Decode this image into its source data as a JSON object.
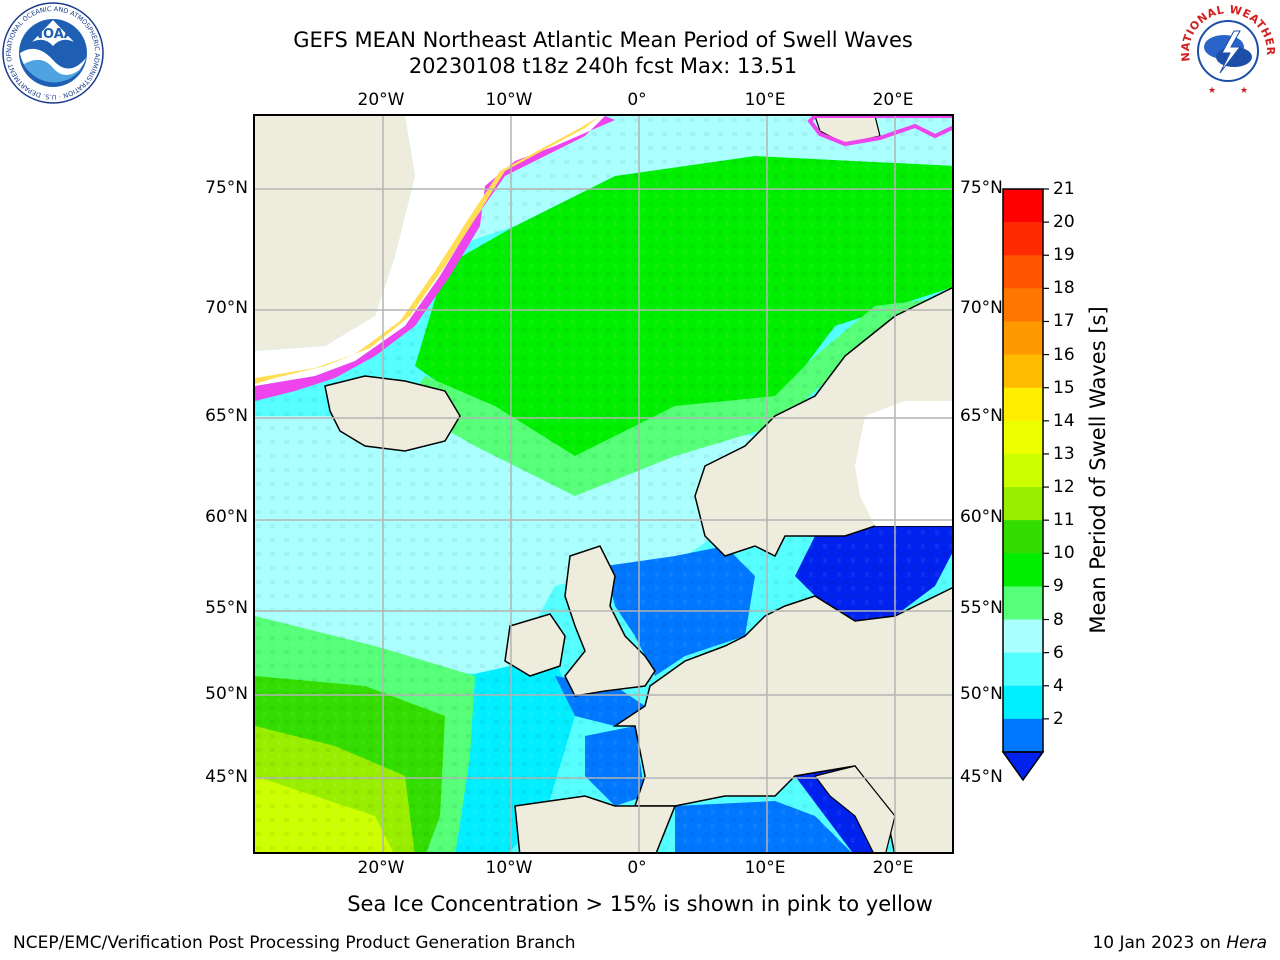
{
  "header": {
    "title_line1": "GEFS MEAN Northeast Atlantic Mean Period of Swell Waves",
    "title_line2": "20230108 t18z 240h fcst   Max: 13.51"
  },
  "logos": {
    "noaa_text": "NOAA",
    "noaa_ring_text": "NATIONAL OCEANIC AND ATMOSPHERIC ADMINISTRATION · U.S. DEPARTMENT OF COMMERCE",
    "nws_ring_text": "NATIONAL WEATHER SERVICE"
  },
  "map": {
    "lon_labels": [
      "20°W",
      "10°W",
      "0°",
      "10°E",
      "20°E"
    ],
    "lat_labels": [
      "75°N",
      "70°N",
      "65°N",
      "60°N",
      "55°N",
      "50°N",
      "45°N"
    ],
    "colors": {
      "land": "#eeecdd",
      "ice_pink": "#ee44ee",
      "ice_yellow": "#ffdd55",
      "grid": "#b4b4b4"
    }
  },
  "colorbar": {
    "title": "Mean Period of Swell Waves [s]",
    "ticks": [
      "21",
      "20",
      "19",
      "18",
      "17",
      "16",
      "15",
      "14",
      "13",
      "12",
      "11",
      "10",
      "9",
      "8",
      "6",
      "4",
      "2"
    ],
    "colors_top_to_bottom": [
      "#ff0000",
      "#ff2a00",
      "#ff5500",
      "#ff7700",
      "#ff9900",
      "#ffbb00",
      "#ffee00",
      "#eeff00",
      "#ccff00",
      "#99ee00",
      "#33dd00",
      "#00ee00",
      "#55ff77",
      "#aaffff",
      "#55ffff",
      "#00eeff",
      "#0077ff"
    ],
    "under_color": "#0022ee"
  },
  "footer": {
    "sea_ice_note": "Sea Ice Concentration > 15% is shown in pink to yellow",
    "credit": "NCEP/EMC/Verification Post Processing Product Generation Branch",
    "date_prefix": "10 Jan 2023 on ",
    "machine": "Hera"
  }
}
